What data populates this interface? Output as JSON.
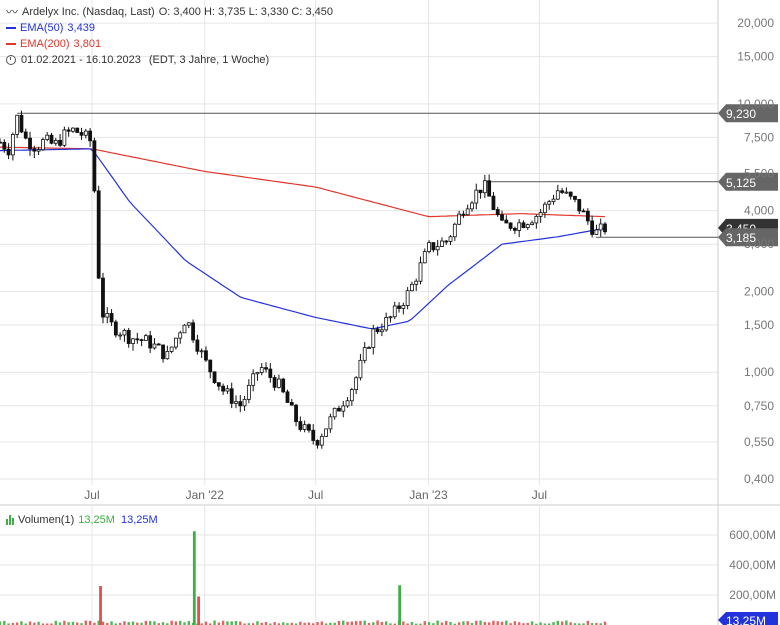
{
  "legend": {
    "title": "Ardelyx Inc. (Nasdaq, Last)",
    "ohlc": "O: 3,400  H: 3,735  L: 3,330  C: 3,450",
    "ema50_label": "EMA(50)",
    "ema50_value": "3,439",
    "ema200_label": "EMA(200)",
    "ema200_value": "3,801",
    "range": "01.02.2021 - 16.10.2023",
    "range_note": "(EDT, 3 Jahre, 1 Woche)"
  },
  "volume_legend": {
    "label": "Volumen(1)",
    "value1": "13,25M",
    "value2": "13,25M"
  },
  "colors": {
    "ema50": "#2233dd",
    "ema200": "#e0372c",
    "volume_up": "#3cb043",
    "volume_down": "#e05050",
    "grid": "#e6e6e6",
    "label_bg": "#666666",
    "candle": "#111111"
  },
  "chart_data": {
    "type": "candlestick",
    "y_scale": "log",
    "ylim": [
      0.38,
      22
    ],
    "y_ticks": [
      {
        "v": 20,
        "label": "20,000"
      },
      {
        "v": 15,
        "label": "15,000"
      },
      {
        "v": 10,
        "label": "10,000"
      },
      {
        "v": 7.5,
        "label": "7,500"
      },
      {
        "v": 5.5,
        "label": "5,500"
      },
      {
        "v": 4,
        "label": "4,000"
      },
      {
        "v": 3,
        "label": "3,000"
      },
      {
        "v": 2,
        "label": "2,000"
      },
      {
        "v": 1.5,
        "label": "1,500"
      },
      {
        "v": 1,
        "label": "1,000"
      },
      {
        "v": 0.75,
        "label": "0,750"
      },
      {
        "v": 0.55,
        "label": "0,550"
      },
      {
        "v": 0.4,
        "label": "0,400"
      }
    ],
    "x_ticks": [
      {
        "date": "2021-07-01",
        "label": "Jul"
      },
      {
        "date": "2022-01-01",
        "label": "Jan '22"
      },
      {
        "date": "2022-07-01",
        "label": "Jul"
      },
      {
        "date": "2023-01-01",
        "label": "Jan '23"
      },
      {
        "date": "2023-07-01",
        "label": "Jul"
      }
    ],
    "xlim": [
      "2021-02-01",
      "2023-10-16"
    ],
    "horizontal_levels": [
      {
        "value": 9.23,
        "label": "9,230",
        "start": "2021-03-01"
      },
      {
        "value": 5.125,
        "label": "5,125",
        "start": "2023-04-01"
      },
      {
        "value": 3.185,
        "label": "3,185",
        "start": "2023-10-01"
      }
    ],
    "current_price": {
      "value": 3.45,
      "label": "3,450"
    },
    "ohlc_weekly_approx": [
      {
        "date": "2021-02-01",
        "close": 7.2
      },
      {
        "date": "2021-02-15",
        "close": 6.8
      },
      {
        "date": "2021-03-01",
        "close": 8.9
      },
      {
        "date": "2021-03-15",
        "close": 7.4
      },
      {
        "date": "2021-04-01",
        "close": 6.9
      },
      {
        "date": "2021-04-15",
        "close": 7.3
      },
      {
        "date": "2021-05-01",
        "close": 7.0
      },
      {
        "date": "2021-05-15",
        "close": 7.6
      },
      {
        "date": "2021-06-01",
        "close": 8.0
      },
      {
        "date": "2021-06-15",
        "close": 7.7
      },
      {
        "date": "2021-07-01",
        "close": 7.2
      },
      {
        "date": "2021-07-15",
        "close": 1.7
      },
      {
        "date": "2021-08-01",
        "close": 1.5
      },
      {
        "date": "2021-09-01",
        "close": 1.35
      },
      {
        "date": "2021-10-01",
        "close": 1.3
      },
      {
        "date": "2021-11-01",
        "close": 1.15
      },
      {
        "date": "2021-12-01",
        "close": 1.6
      },
      {
        "date": "2022-01-01",
        "close": 1.1
      },
      {
        "date": "2022-02-01",
        "close": 0.85
      },
      {
        "date": "2022-03-01",
        "close": 0.75
      },
      {
        "date": "2022-04-01",
        "close": 1.05
      },
      {
        "date": "2022-05-01",
        "close": 0.9
      },
      {
        "date": "2022-06-01",
        "close": 0.65
      },
      {
        "date": "2022-07-01",
        "close": 0.55
      },
      {
        "date": "2022-08-01",
        "close": 0.7
      },
      {
        "date": "2022-09-01",
        "close": 0.9
      },
      {
        "date": "2022-10-01",
        "close": 1.4
      },
      {
        "date": "2022-11-01",
        "close": 1.6
      },
      {
        "date": "2022-12-01",
        "close": 2.0
      },
      {
        "date": "2023-01-01",
        "close": 2.9
      },
      {
        "date": "2023-02-01",
        "close": 3.1
      },
      {
        "date": "2023-03-01",
        "close": 4.2
      },
      {
        "date": "2023-04-01",
        "close": 5.0
      },
      {
        "date": "2023-05-01",
        "close": 3.5
      },
      {
        "date": "2023-06-01",
        "close": 3.6
      },
      {
        "date": "2023-07-01",
        "close": 3.9
      },
      {
        "date": "2023-08-01",
        "close": 4.8
      },
      {
        "date": "2023-09-01",
        "close": 4.2
      },
      {
        "date": "2023-10-01",
        "close": 3.3
      },
      {
        "date": "2023-10-16",
        "close": 3.45
      }
    ],
    "ema50_approx": [
      {
        "date": "2021-02-01",
        "v": 6.7
      },
      {
        "date": "2021-07-01",
        "v": 6.8
      },
      {
        "date": "2021-09-01",
        "v": 4.3
      },
      {
        "date": "2021-12-01",
        "v": 2.6
      },
      {
        "date": "2022-03-01",
        "v": 1.9
      },
      {
        "date": "2022-07-01",
        "v": 1.6
      },
      {
        "date": "2022-10-01",
        "v": 1.45
      },
      {
        "date": "2022-12-01",
        "v": 1.55
      },
      {
        "date": "2023-02-01",
        "v": 2.1
      },
      {
        "date": "2023-05-01",
        "v": 3.0
      },
      {
        "date": "2023-08-01",
        "v": 3.2
      },
      {
        "date": "2023-10-16",
        "v": 3.44
      }
    ],
    "ema200_approx": [
      {
        "date": "2021-02-01",
        "v": 6.9
      },
      {
        "date": "2021-07-01",
        "v": 6.8
      },
      {
        "date": "2022-01-01",
        "v": 5.6
      },
      {
        "date": "2022-07-01",
        "v": 4.9
      },
      {
        "date": "2023-01-01",
        "v": 3.8
      },
      {
        "date": "2023-06-01",
        "v": 3.9
      },
      {
        "date": "2023-10-16",
        "v": 3.8
      }
    ],
    "volume": {
      "y_ticks": [
        {
          "v": 600,
          "label": "600,00M"
        },
        {
          "v": 400,
          "label": "400,00M"
        },
        {
          "v": 200,
          "label": "200,00M"
        }
      ],
      "ylim": [
        0,
        700
      ],
      "current": {
        "value": 13.25,
        "label": "13,25M"
      },
      "spikes": [
        {
          "date": "2021-07-15",
          "v": 260,
          "up": false
        },
        {
          "date": "2021-12-15",
          "v": 625,
          "up": true
        },
        {
          "date": "2021-12-22",
          "v": 190,
          "up": false
        },
        {
          "date": "2022-11-15",
          "v": 265,
          "up": true
        }
      ]
    }
  }
}
